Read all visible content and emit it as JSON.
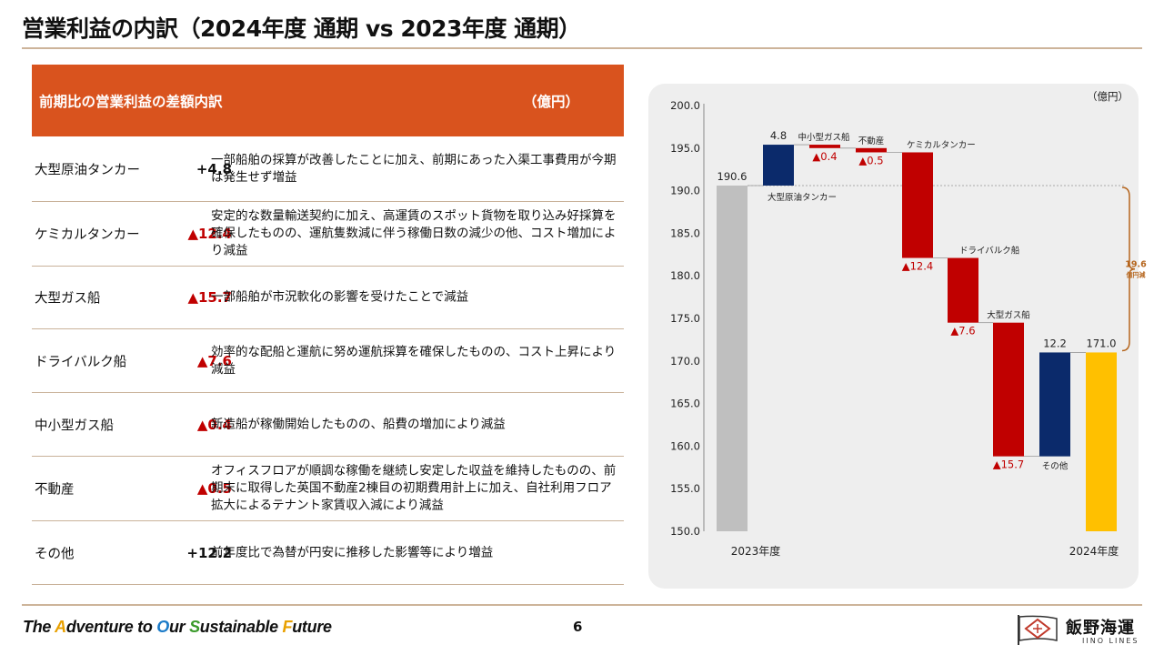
{
  "title": "営業利益の内訳（2024年度 通期 vs 2023年度 通期）",
  "table": {
    "header_title": "前期比の営業利益の差額内訳",
    "header_unit": "（億円）",
    "rows": [
      {
        "segment": "大型原油タンカー",
        "value": "+4.8",
        "desc": "一部船舶の採算が改善したことに加え、前期にあった入渠工事費用が今期は発生せず増益"
      },
      {
        "segment": "ケミカルタンカー",
        "value": "▲12.4",
        "desc": "安定的な数量輸送契約に加え、高運賃のスポット貨物を取り込み好採算を確保したものの、運航隻数減に伴う稼働日数の減少の他、コスト増加により減益"
      },
      {
        "segment": "大型ガス船",
        "value": "▲15.7",
        "desc": "一部船舶が市況軟化の影響を受けたことで減益"
      },
      {
        "segment": "ドライバルク船",
        "value": "▲7.6",
        "desc": "効率的な配船と運航に努め運航採算を確保したものの、コスト上昇により減益"
      },
      {
        "segment": "中小型ガス船",
        "value": "▲0.4",
        "desc": "新造船が稼働開始したものの、船費の増加により減益"
      },
      {
        "segment": "不動産",
        "value": "▲0.5",
        "desc": "オフィスフロアが順調な稼働を継続し安定した収益を維持したものの、前期末に取得した英国不動産2棟目の初期費用計上に加え、自社利用フロア拡大によるテナント家賃収入減により減益"
      },
      {
        "segment": "その他",
        "value": "+12.2",
        "desc": "前年度比で為替が円安に推移した影響等により増益"
      }
    ]
  },
  "chart_data": {
    "type": "bar",
    "subtype": "waterfall",
    "unit_label": "（億円）",
    "ylim": [
      150.0,
      200.0
    ],
    "yticks": [
      "150.0",
      "155.0",
      "160.0",
      "165.0",
      "170.0",
      "175.0",
      "180.0",
      "185.0",
      "190.0",
      "195.0",
      "200.0"
    ],
    "x_start_label": "2023年度",
    "x_end_label": "2024年度",
    "start": {
      "value": 190.6,
      "label": "190.6"
    },
    "end": {
      "value": 171.0,
      "label": "171.0"
    },
    "steps": [
      {
        "name": "大型原油タンカー",
        "delta": 4.8,
        "label": "4.8"
      },
      {
        "name": "中小型ガス船",
        "delta": -0.4,
        "label": "▲0.4"
      },
      {
        "name": "不動産",
        "delta": -0.5,
        "label": "▲0.5"
      },
      {
        "name": "ケミカルタンカー",
        "delta": -12.4,
        "label": "▲12.4"
      },
      {
        "name": "ドライバルク船",
        "delta": -7.6,
        "label": "▲7.6"
      },
      {
        "name": "大型ガス船",
        "delta": -15.7,
        "label": "▲15.7"
      },
      {
        "name": "その他",
        "delta": 12.2,
        "label": "12.2"
      }
    ],
    "bracket_label_value": "19.6",
    "bracket_label_unit": "億円減",
    "colors": {
      "start": "#bfbfbf",
      "end": "#ffc000",
      "positive": "#0b2a6b",
      "negative": "#c00000",
      "bracket": "#b5651d"
    }
  },
  "footer": {
    "slogan_parts": [
      "The ",
      "A",
      "dventure to ",
      "O",
      "ur ",
      "S",
      "ustainable ",
      "F",
      "uture"
    ],
    "page_number": "6",
    "company_name": "飯野海運",
    "company_sub": "IINO LINES"
  }
}
